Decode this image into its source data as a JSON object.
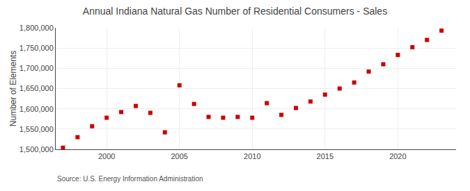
{
  "chart_data": {
    "type": "scatter",
    "title": "Annual Indiana Natural Gas Number of Residential Consumers - Sales",
    "ylabel": "Number of Elements",
    "annotations": [
      "Source: U.S. Energy Information Administration"
    ],
    "x": [
      1997,
      1998,
      1999,
      2000,
      2001,
      2002,
      2003,
      2004,
      2005,
      2006,
      2007,
      2008,
      2009,
      2010,
      2011,
      2012,
      2013,
      2014,
      2015,
      2016,
      2017,
      2018,
      2019,
      2020,
      2021,
      2022,
      2023
    ],
    "values": [
      1504000,
      1530000,
      1557000,
      1578000,
      1592000,
      1607000,
      1590000,
      1542000,
      1658000,
      1612000,
      1580000,
      1578000,
      1580000,
      1578000,
      1614000,
      1585000,
      1602000,
      1618000,
      1635000,
      1650000,
      1665000,
      1692000,
      1710000,
      1733000,
      1752000,
      1770000,
      1793000
    ],
    "color": "#cc0000",
    "marker": "square",
    "xlim": [
      1996.5,
      2024
    ],
    "xticks": [
      2000,
      2005,
      2010,
      2015,
      2020
    ],
    "ylim": [
      1500000,
      1800000
    ],
    "yticks": [
      {
        "value": 1500000,
        "label": "1,500,000"
      },
      {
        "value": 1550000,
        "label": "1,550,000"
      },
      {
        "value": 1600000,
        "label": "1,600,000"
      },
      {
        "value": 1650000,
        "label": "1,650,000"
      },
      {
        "value": 1700000,
        "label": "1,700,000"
      },
      {
        "value": 1750000,
        "label": "1,750,000"
      },
      {
        "value": 1800000,
        "label": "1,800,000"
      }
    ],
    "grid": true
  }
}
